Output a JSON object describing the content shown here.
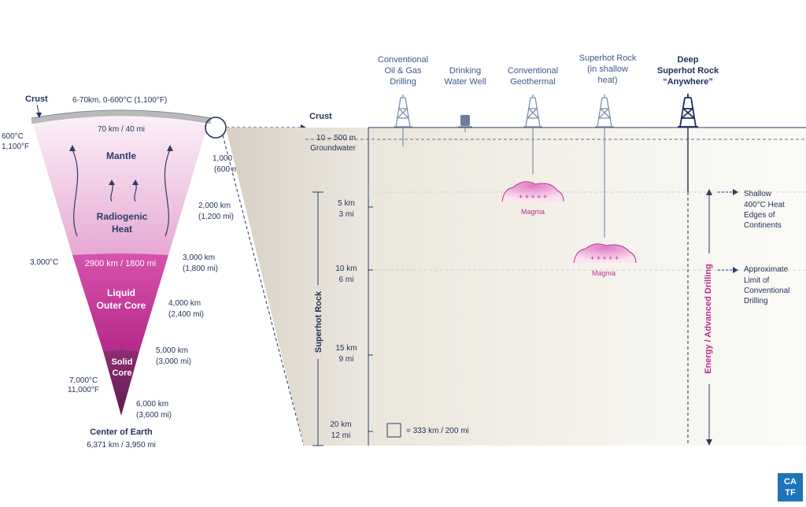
{
  "earth": {
    "crust_label": "Crust",
    "crust_info": "6-70km, 0-600°C (1,100°F)",
    "crust_temp_c": "600°C",
    "crust_temp_f": "1,100°F",
    "crust_width": "70 km / 40 mi",
    "mantle": "Mantle",
    "radiogenic_1": "Radiogenic",
    "radiogenic_2": "Heat",
    "mantle_temp": "3,000°C",
    "outer_core_width": "2900 km / 1800 mi",
    "outer_core_1": "Liquid",
    "outer_core_2": "Outer Core",
    "inner_core_1": "Solid",
    "inner_core_2": "Core",
    "core_temp_c": "7,000°C",
    "core_temp_f": "11,000°F",
    "center_title": "Center of Earth",
    "center_depth": "6,371 km / 3,950 mi",
    "depths": [
      {
        "km": "1,000 km",
        "mi": "(600 mi)"
      },
      {
        "km": "2,000 km",
        "mi": "(1,200 mi)"
      },
      {
        "km": "3,000 km",
        "mi": "(1,800 mi)"
      },
      {
        "km": "4,000 km",
        "mi": "(2,400 mi)"
      },
      {
        "km": "5,000 km",
        "mi": "(3,000 mi)"
      },
      {
        "km": "6,000 km",
        "mi": "(3,600 mi)"
      }
    ]
  },
  "detail": {
    "crust_label": "Crust",
    "groundwater_1": "10 – 500 m",
    "groundwater_2": "Groundwater",
    "ticks": [
      {
        "km": "5 km",
        "mi": "3 mi"
      },
      {
        "km": "10 km",
        "mi": "6 mi"
      },
      {
        "km": "15 km",
        "mi": "9 mi"
      },
      {
        "km": "20 km",
        "mi": "12 mi"
      }
    ],
    "superhot_rock": "Superhot Rock",
    "energy_drilling": "Energy / Advanced Drilling",
    "magma": "Magma",
    "scale_legend": "= 333 km / 200 mi",
    "shallow_note": [
      "Shallow",
      "400°C Heat",
      "Edges of",
      "Continents"
    ],
    "limit_note": [
      "Approximate",
      "Limit of",
      "Conventional",
      "Drilling"
    ],
    "columns": [
      {
        "lines": [
          "Conventional",
          "Oil & Gas",
          "Drilling"
        ]
      },
      {
        "lines": [
          "Drinking",
          "Water Well"
        ]
      },
      {
        "lines": [
          "Conventional",
          "Geothermal"
        ]
      },
      {
        "lines": [
          "Superhot Rock",
          "(in shallow",
          "heat)"
        ]
      },
      {
        "lines": [
          "Deep",
          "Superhot Rock",
          "“Anywhere”"
        ]
      }
    ]
  },
  "logo": {
    "line1": "CA",
    "line2": "TF"
  },
  "colors": {
    "navy": "#22335a",
    "magenta": "#ba2d8e",
    "mantle_pink": "#f1cce6",
    "outer_core": "#c7389a",
    "inner_core": "#7a2563",
    "logo_blue": "#1c74b9"
  }
}
